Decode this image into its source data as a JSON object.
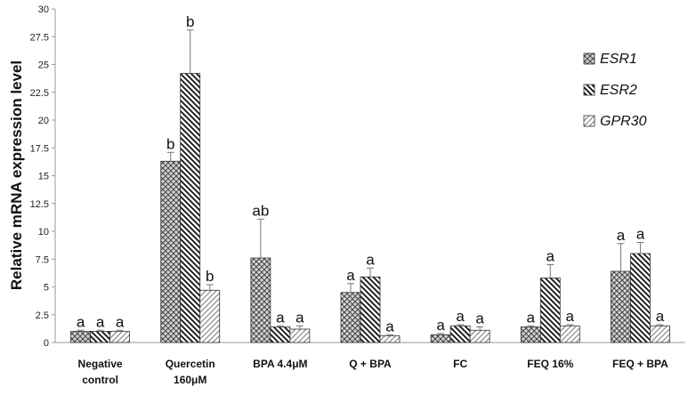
{
  "chart_data": {
    "type": "bar",
    "ylabel": "Relative mRNA expression level",
    "xlabel": "",
    "ylim": [
      0,
      30
    ],
    "yticks": [
      "0",
      "2.5",
      "5",
      "7.5",
      "10",
      "12.5",
      "15",
      "17.5",
      "20",
      "22.5",
      "25",
      "27.5",
      "30"
    ],
    "categories": [
      [
        "Negative",
        "control"
      ],
      [
        "Quercetin",
        "160μM"
      ],
      [
        "BPA  4.4μM"
      ],
      [
        "Q + BPA"
      ],
      [
        "FC"
      ],
      [
        "FEQ 16%"
      ],
      [
        "FEQ + BPA"
      ]
    ],
    "legend_position": "right",
    "series": [
      {
        "name": "ESR1",
        "pattern": "crosshatch",
        "values": [
          1.0,
          16.3,
          7.6,
          4.5,
          0.7,
          1.4,
          6.4
        ],
        "errors": [
          0.1,
          0.8,
          3.5,
          0.8,
          0.1,
          0.1,
          2.5
        ],
        "labels": [
          "a",
          "b",
          "ab",
          "a",
          "a",
          "a",
          "a"
        ]
      },
      {
        "name": "ESR2",
        "pattern": "dense-diagonal",
        "values": [
          1.0,
          24.2,
          1.4,
          5.9,
          1.5,
          5.8,
          8.0
        ],
        "errors": [
          0.1,
          3.9,
          0.1,
          0.8,
          0.1,
          1.2,
          1.0
        ],
        "labels": [
          "a",
          "b",
          "a",
          "a",
          "a",
          "a",
          "a"
        ]
      },
      {
        "name": "GPR30",
        "pattern": "light-diagonal",
        "values": [
          1.0,
          4.7,
          1.2,
          0.6,
          1.1,
          1.5,
          1.5
        ],
        "errors": [
          0.1,
          0.5,
          0.3,
          0.1,
          0.3,
          0.1,
          0.1
        ],
        "labels": [
          "a",
          "b",
          "a",
          "a",
          "a",
          "a",
          "a"
        ]
      }
    ]
  }
}
